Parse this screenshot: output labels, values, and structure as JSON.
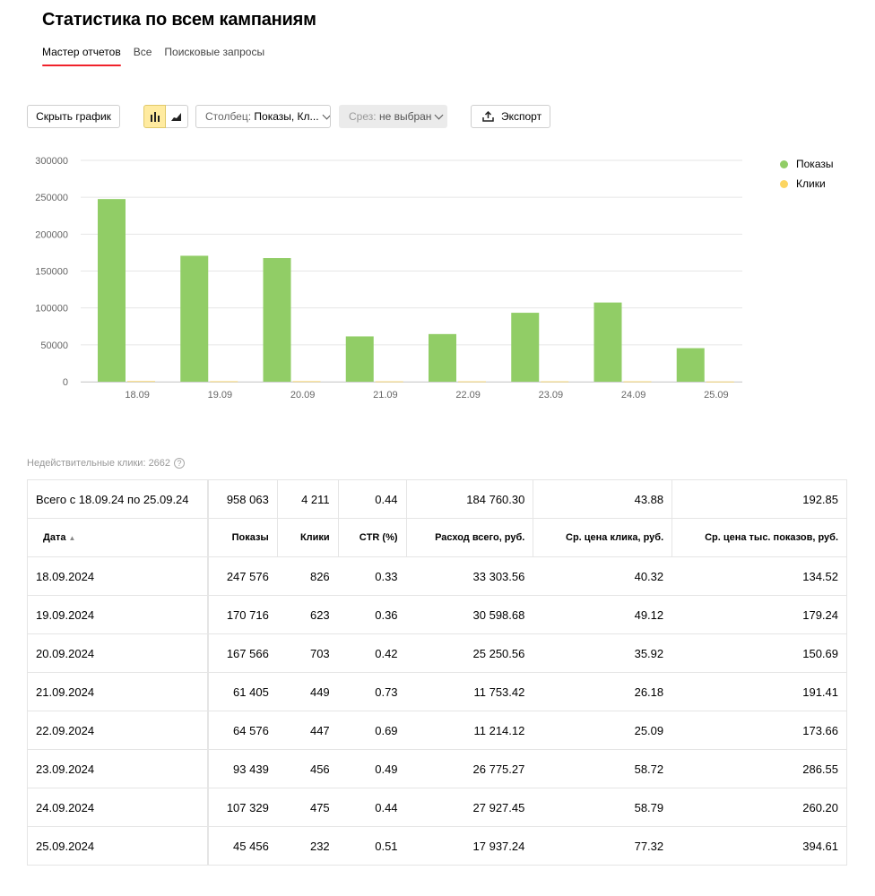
{
  "page": {
    "title": "Статистика по всем кампаниям"
  },
  "tabs": [
    {
      "label": "Мастер отчетов",
      "active": true
    },
    {
      "label": "Все",
      "active": false
    },
    {
      "label": "Поисковые запросы",
      "active": false
    }
  ],
  "toolbar": {
    "hide_chart_label": "Скрыть график",
    "chart_type_bar_icon": "bar-chart-icon",
    "chart_type_area_icon": "area-chart-icon",
    "column_label": "Столбец:",
    "column_value": "Показы, Кл...",
    "slice_label": "Срез:",
    "slice_value": "не выбран",
    "export_label": "Экспорт"
  },
  "chart_data": {
    "type": "bar",
    "categories": [
      "18.09",
      "19.09",
      "20.09",
      "21.09",
      "22.09",
      "23.09",
      "24.09",
      "25.09"
    ],
    "series": [
      {
        "name": "Показы",
        "color": "#91cd66",
        "values": [
          247576,
          170716,
          167566,
          61405,
          64576,
          93439,
          107329,
          45456
        ]
      },
      {
        "name": "Клики",
        "color": "#fcd561",
        "values": [
          826,
          623,
          703,
          449,
          447,
          456,
          475,
          232
        ]
      }
    ],
    "yticks": [
      "300000",
      "250000",
      "200000",
      "150000",
      "100000",
      "50000",
      "0"
    ],
    "ylim": [
      0,
      300000
    ],
    "grid": true,
    "legend_position": "top-right"
  },
  "invalid_clicks": {
    "label": "Недействительные клики: 2662",
    "help_icon": "question-circle-icon"
  },
  "table": {
    "total": {
      "label": "Всего с 18.09.24 по 25.09.24",
      "shows": "958 063",
      "clicks": "4 211",
      "ctr": "0.44",
      "spend": "184 760.30",
      "cpc": "43.88",
      "cpm": "192.85"
    },
    "headers": {
      "date": "Дата",
      "sort_arrow": "▲",
      "shows": "Показы",
      "clicks": "Клики",
      "ctr": "CTR (%)",
      "spend": "Расход всего, руб.",
      "cpc": "Ср. цена клика, руб.",
      "cpm": "Ср. цена тыс. показов, руб."
    },
    "rows": [
      {
        "date": "18.09.2024",
        "shows": "247 576",
        "clicks": "826",
        "ctr": "0.33",
        "spend": "33 303.56",
        "cpc": "40.32",
        "cpm": "134.52"
      },
      {
        "date": "19.09.2024",
        "shows": "170 716",
        "clicks": "623",
        "ctr": "0.36",
        "spend": "30 598.68",
        "cpc": "49.12",
        "cpm": "179.24"
      },
      {
        "date": "20.09.2024",
        "shows": "167 566",
        "clicks": "703",
        "ctr": "0.42",
        "spend": "25 250.56",
        "cpc": "35.92",
        "cpm": "150.69"
      },
      {
        "date": "21.09.2024",
        "shows": "61 405",
        "clicks": "449",
        "ctr": "0.73",
        "spend": "11 753.42",
        "cpc": "26.18",
        "cpm": "191.41"
      },
      {
        "date": "22.09.2024",
        "shows": "64 576",
        "clicks": "447",
        "ctr": "0.69",
        "spend": "11 214.12",
        "cpc": "25.09",
        "cpm": "173.66"
      },
      {
        "date": "23.09.2024",
        "shows": "93 439",
        "clicks": "456",
        "ctr": "0.49",
        "spend": "26 775.27",
        "cpc": "58.72",
        "cpm": "286.55"
      },
      {
        "date": "24.09.2024",
        "shows": "107 329",
        "clicks": "475",
        "ctr": "0.44",
        "spend": "27 927.45",
        "cpc": "58.79",
        "cpm": "260.20"
      },
      {
        "date": "25.09.2024",
        "shows": "45 456",
        "clicks": "232",
        "ctr": "0.51",
        "spend": "17 937.24",
        "cpc": "77.32",
        "cpm": "394.61"
      }
    ]
  }
}
